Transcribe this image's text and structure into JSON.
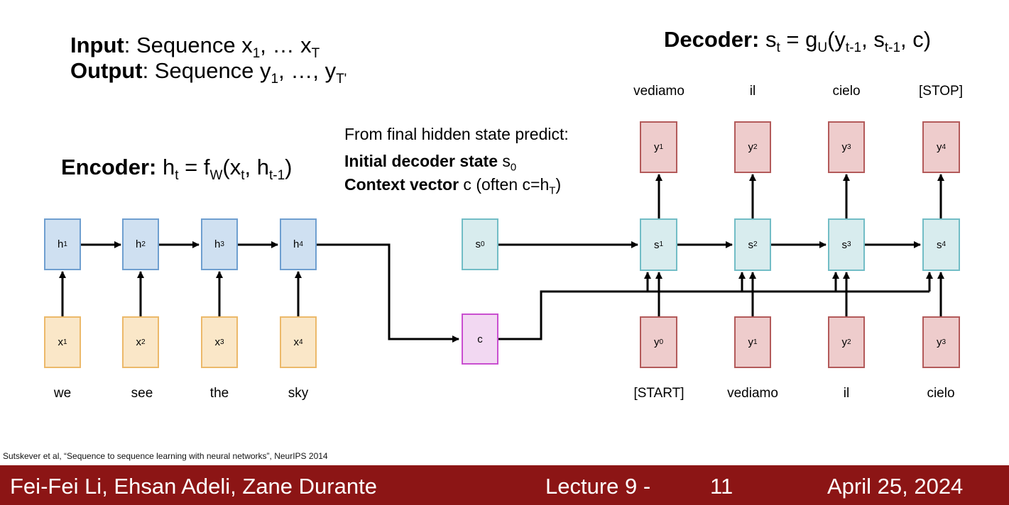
{
  "header": {
    "input_label": "Input",
    "input_text": ": Sequence x",
    "input_sub1": "1",
    "input_mid": ", … x",
    "input_sub2": "T",
    "output_label": "Output",
    "output_text": ": Sequence y",
    "output_sub1": "1",
    "output_mid": ", …, y",
    "output_sub2": "T'",
    "decoder_label": "Decoder:",
    "decoder_formula": {
      "a": " s",
      "a_sub": "t",
      "b": " = g",
      "b_sub": "U",
      "c": "(y",
      "c_sub": "t-1",
      "d": ", s",
      "d_sub": "t-1",
      "e": ", c)"
    },
    "encoder_label": "Encoder:",
    "encoder_formula": {
      "a": " h",
      "a_sub": "t",
      "b": " = f",
      "b_sub": "W",
      "c": "(x",
      "c_sub": "t",
      "d": ", h",
      "d_sub": "t-1",
      "e": ")"
    }
  },
  "predict": {
    "line1": "From final hidden state predict:",
    "line2_bold": "Initial decoder state",
    "line2_rest": " s",
    "line2_sub": "0",
    "line3_bold": "Context vector",
    "line3_rest": " c (often c=h",
    "line3_sub": "T",
    "line3_end": ")"
  },
  "encoder": {
    "hidden": [
      {
        "base": "h",
        "sub": "1"
      },
      {
        "base": "h",
        "sub": "2"
      },
      {
        "base": "h",
        "sub": "3"
      },
      {
        "base": "h",
        "sub": "4"
      }
    ],
    "inputs": [
      {
        "base": "x",
        "sub": "1"
      },
      {
        "base": "x",
        "sub": "2"
      },
      {
        "base": "x",
        "sub": "3"
      },
      {
        "base": "x",
        "sub": "4"
      }
    ],
    "words": [
      "we",
      "see",
      "the",
      "sky"
    ]
  },
  "context": {
    "s0_base": "s",
    "s0_sub": "0",
    "c_label": "c"
  },
  "decoder": {
    "states": [
      {
        "base": "s",
        "sub": "1"
      },
      {
        "base": "s",
        "sub": "2"
      },
      {
        "base": "s",
        "sub": "3"
      },
      {
        "base": "s",
        "sub": "4"
      }
    ],
    "outputs": [
      {
        "base": "y",
        "sub": "1"
      },
      {
        "base": "y",
        "sub": "2"
      },
      {
        "base": "y",
        "sub": "3"
      },
      {
        "base": "y",
        "sub": "4"
      }
    ],
    "inputs": [
      {
        "base": "y",
        "sub": "0"
      },
      {
        "base": "y",
        "sub": "1"
      },
      {
        "base": "y",
        "sub": "2"
      },
      {
        "base": "y",
        "sub": "3"
      }
    ],
    "output_words": [
      "vediamo",
      "il",
      "cielo",
      "[STOP]"
    ],
    "input_words": [
      "[START]",
      "vediamo",
      "il",
      "cielo"
    ]
  },
  "citation": "Sutskever et al, “Sequence to sequence learning with neural networks”, NeurIPS 2014",
  "footer": {
    "authors": "Fei-Fei Li, Ehsan Adeli, Zane Durante",
    "lecture": "Lecture 9 -",
    "page": "11",
    "date": "April 25, 2024"
  },
  "colors": {
    "footer_bg": "#8c1515",
    "arrow": "#000000"
  }
}
